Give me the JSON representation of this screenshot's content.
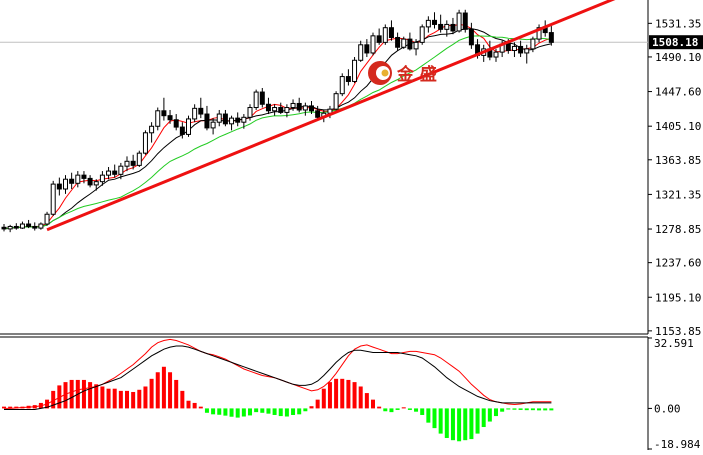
{
  "colors": {
    "bull_body": "#ffffff",
    "bear_body": "#000000",
    "candle_outline": "#000000",
    "ma_fast": "#ff0000",
    "ma_mid": "#000000",
    "ma_slow": "#22cc22",
    "trendline": "#ee1111",
    "macd_pos": "#ff0000",
    "macd_neg": "#00ff00",
    "signal_line": "#ff0000",
    "macd_line": "#000000",
    "grid_hline": "#c0c0c0",
    "logo_red": "#d42a1e"
  },
  "logo": {
    "text": "金 盛"
  },
  "chart_data": [
    {
      "type": "candlestick",
      "panel": "price",
      "ylim": [
        1150,
        1560
      ],
      "y_ticks": [
        "1531.35",
        "1490.10",
        "1447.60",
        "1405.10",
        "1363.85",
        "1321.35",
        "1278.85",
        "1237.60",
        "1195.10",
        "1153.85"
      ],
      "current_price_label": "1508.18",
      "current_price": 1508.18,
      "candles": [
        [
          1281,
          1285,
          1276,
          1279
        ],
        [
          1279,
          1284,
          1275,
          1282
        ],
        [
          1282,
          1286,
          1278,
          1280
        ],
        [
          1280,
          1288,
          1279,
          1285
        ],
        [
          1285,
          1290,
          1280,
          1282
        ],
        [
          1282,
          1287,
          1277,
          1280
        ],
        [
          1280,
          1287,
          1278,
          1285
        ],
        [
          1285,
          1300,
          1283,
          1297
        ],
        [
          1297,
          1338,
          1295,
          1334
        ],
        [
          1334,
          1342,
          1320,
          1328
        ],
        [
          1328,
          1345,
          1322,
          1340
        ],
        [
          1340,
          1348,
          1328,
          1335
        ],
        [
          1335,
          1350,
          1330,
          1345
        ],
        [
          1345,
          1350,
          1335,
          1341
        ],
        [
          1341,
          1345,
          1330,
          1333
        ],
        [
          1333,
          1340,
          1326,
          1337
        ],
        [
          1337,
          1350,
          1332,
          1345
        ],
        [
          1345,
          1355,
          1340,
          1350
        ],
        [
          1350,
          1358,
          1342,
          1346
        ],
        [
          1346,
          1360,
          1340,
          1356
        ],
        [
          1356,
          1368,
          1350,
          1362
        ],
        [
          1362,
          1370,
          1352,
          1357
        ],
        [
          1357,
          1375,
          1355,
          1372
        ],
        [
          1372,
          1400,
          1370,
          1397
        ],
        [
          1397,
          1410,
          1385,
          1405
        ],
        [
          1405,
          1428,
          1400,
          1424
        ],
        [
          1424,
          1440,
          1412,
          1418
        ],
        [
          1418,
          1425,
          1408,
          1413
        ],
        [
          1413,
          1420,
          1400,
          1404
        ],
        [
          1404,
          1410,
          1390,
          1395
        ],
        [
          1395,
          1418,
          1392,
          1414
        ],
        [
          1414,
          1432,
          1410,
          1427
        ],
        [
          1427,
          1440,
          1415,
          1420
        ],
        [
          1420,
          1430,
          1400,
          1403
        ],
        [
          1403,
          1415,
          1395,
          1410
        ],
        [
          1410,
          1425,
          1405,
          1420
        ],
        [
          1420,
          1425,
          1405,
          1408
        ],
        [
          1408,
          1418,
          1400,
          1415
        ],
        [
          1415,
          1422,
          1405,
          1410
        ],
        [
          1410,
          1420,
          1402,
          1416
        ],
        [
          1416,
          1432,
          1412,
          1428
        ],
        [
          1428,
          1450,
          1425,
          1447
        ],
        [
          1447,
          1452,
          1428,
          1432
        ],
        [
          1432,
          1440,
          1420,
          1424
        ],
        [
          1424,
          1432,
          1418,
          1428
        ],
        [
          1428,
          1434,
          1420,
          1422
        ],
        [
          1422,
          1432,
          1416,
          1428
        ],
        [
          1428,
          1438,
          1424,
          1433
        ],
        [
          1433,
          1440,
          1422,
          1425
        ],
        [
          1425,
          1434,
          1418,
          1430
        ],
        [
          1430,
          1436,
          1420,
          1424
        ],
        [
          1424,
          1430,
          1412,
          1416
        ],
        [
          1416,
          1425,
          1410,
          1421
        ],
        [
          1421,
          1430,
          1415,
          1426
        ],
        [
          1426,
          1448,
          1424,
          1445
        ],
        [
          1445,
          1470,
          1442,
          1466
        ],
        [
          1466,
          1475,
          1455,
          1460
        ],
        [
          1460,
          1490,
          1458,
          1486
        ],
        [
          1486,
          1510,
          1484,
          1505
        ],
        [
          1505,
          1512,
          1490,
          1495
        ],
        [
          1495,
          1520,
          1492,
          1516
        ],
        [
          1516,
          1525,
          1505,
          1508
        ],
        [
          1508,
          1530,
          1505,
          1526
        ],
        [
          1526,
          1535,
          1510,
          1514
        ],
        [
          1514,
          1520,
          1498,
          1502
        ],
        [
          1502,
          1515,
          1500,
          1512
        ],
        [
          1512,
          1520,
          1498,
          1500
        ],
        [
          1500,
          1512,
          1492,
          1508
        ],
        [
          1508,
          1530,
          1505,
          1527
        ],
        [
          1527,
          1540,
          1520,
          1535
        ],
        [
          1535,
          1545,
          1525,
          1530
        ],
        [
          1530,
          1542,
          1520,
          1524
        ],
        [
          1524,
          1535,
          1515,
          1530
        ],
        [
          1530,
          1538,
          1518,
          1522
        ],
        [
          1522,
          1548,
          1520,
          1544
        ],
        [
          1544,
          1548,
          1520,
          1524
        ],
        [
          1524,
          1532,
          1500,
          1505
        ],
        [
          1505,
          1512,
          1488,
          1492
        ],
        [
          1492,
          1505,
          1484,
          1500
        ],
        [
          1500,
          1510,
          1486,
          1490
        ],
        [
          1490,
          1500,
          1484,
          1496
        ],
        [
          1496,
          1510,
          1490,
          1506
        ],
        [
          1506,
          1512,
          1494,
          1498
        ],
        [
          1498,
          1508,
          1490,
          1503
        ],
        [
          1503,
          1510,
          1490,
          1495
        ],
        [
          1495,
          1505,
          1482,
          1500
        ],
        [
          1500,
          1515,
          1496,
          1512
        ],
        [
          1512,
          1530,
          1508,
          1526
        ],
        [
          1526,
          1535,
          1515,
          1520
        ],
        [
          1520,
          1528,
          1504,
          1508
        ]
      ],
      "trendline": {
        "start": [
          7,
          1278
        ],
        "end": [
          89,
          1530
        ]
      }
    },
    {
      "type": "histogram",
      "panel": "macd",
      "ylim": [
        -18.984,
        32.591
      ],
      "y_ticks": [
        "32.591",
        "0.00",
        "-18.984"
      ],
      "histogram": [
        0.8,
        0.8,
        0.8,
        0.8,
        1.2,
        1.5,
        2.5,
        4,
        8,
        10.5,
        12,
        13,
        13,
        13,
        12,
        11,
        10,
        9,
        9,
        8,
        8,
        7.5,
        8.5,
        10,
        13.5,
        16.5,
        19,
        16.5,
        13,
        8,
        3.5,
        2.5,
        0.8,
        -2,
        -2.7,
        -2.9,
        -3.3,
        -3.8,
        -4.2,
        -3.7,
        -3.2,
        -1.7,
        -2,
        -2.4,
        -3,
        -3.5,
        -3.7,
        -3,
        -2.7,
        -1.3,
        1,
        4,
        9,
        12,
        13.5,
        13.5,
        13,
        12,
        10,
        7,
        4,
        0.8,
        -1.3,
        -1.7,
        -0.7,
        0.5,
        -0.7,
        -1.5,
        -3,
        -6.5,
        -9,
        -11.5,
        -13.5,
        -14.5,
        -15,
        -14.5,
        -14,
        -11.5,
        -8.5,
        -6,
        -3.5,
        -1.5,
        -0.5,
        -0.6,
        -0.7,
        -0.8,
        -0.8,
        -0.9,
        -0.9,
        -0.9
      ],
      "signal": [
        0,
        0,
        0.2,
        0.4,
        0.6,
        0.8,
        1.2,
        2,
        3.5,
        5,
        6.5,
        7.5,
        8.5,
        9,
        9.5,
        10,
        11,
        12.5,
        14,
        16,
        18,
        20,
        22.5,
        25,
        28,
        30,
        31,
        31.5,
        31,
        30,
        29,
        27.5,
        26,
        25,
        24.5,
        23.5,
        22.5,
        21,
        19.5,
        18,
        17,
        16,
        15,
        14.5,
        14,
        13,
        12,
        11,
        10,
        9,
        8,
        8.5,
        10,
        12.5,
        16,
        20,
        24,
        27,
        28.5,
        29,
        28,
        27,
        26,
        25,
        25,
        25.5,
        26,
        26,
        25.5,
        25,
        24.5,
        23,
        21,
        19,
        17,
        14,
        11,
        8.5,
        6,
        4,
        3,
        2.5,
        2,
        1.8,
        2,
        2.5,
        3,
        3,
        3,
        3
      ],
      "macd": [
        -0.5,
        -0.5,
        -0.5,
        -0.5,
        -0.5,
        -0.5,
        0,
        0.5,
        1.5,
        2.5,
        3.5,
        5,
        6.5,
        8,
        9,
        10,
        11,
        12,
        13,
        14,
        16,
        18,
        20,
        22,
        24,
        25.5,
        27,
        28,
        28.5,
        28.5,
        28,
        27,
        26,
        25,
        24,
        23,
        22,
        21,
        20,
        19,
        18,
        17,
        16,
        15,
        14,
        13,
        12,
        11,
        10.5,
        10.5,
        11,
        12.5,
        15,
        18,
        21,
        23.5,
        25.5,
        26.5,
        26.5,
        26,
        25.5,
        25.5,
        25.5,
        25.5,
        25.5,
        25,
        24.5,
        24,
        23,
        21,
        19,
        16.5,
        14,
        12,
        10,
        8.5,
        7,
        5.5,
        4.5,
        3.5,
        3,
        2.5,
        2.5,
        2.5,
        2.5,
        2.5,
        2.5,
        2.5,
        2.5,
        2.5
      ]
    }
  ]
}
